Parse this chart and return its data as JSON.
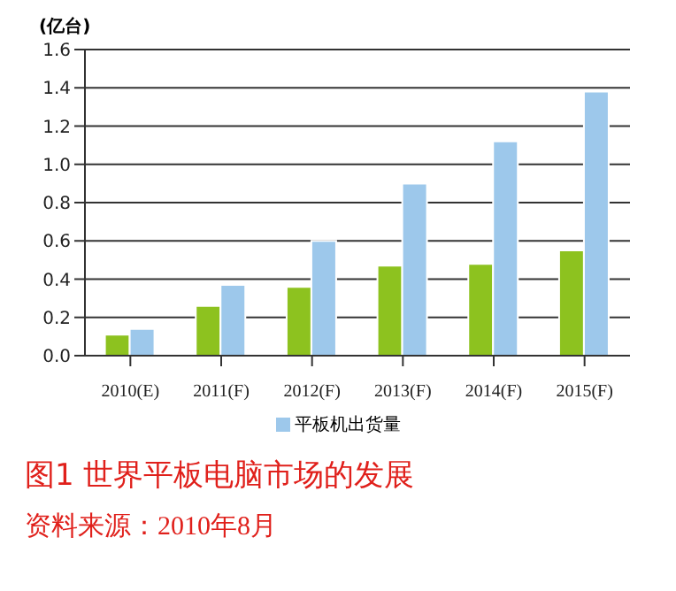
{
  "chart_data": {
    "type": "bar",
    "title": "图1  世界平板电脑市场的发展",
    "ylabel": "(亿台)",
    "annotations": [
      "资料来源：2010年8月"
    ],
    "categories": [
      "2010(E)",
      "2011(F)",
      "2012(F)",
      "2013(F)",
      "2014(F)",
      "2015(F)"
    ],
    "series": [
      {
        "color": "#8dc21f",
        "values": [
          0.11,
          0.26,
          0.36,
          0.47,
          0.48,
          0.55
        ]
      },
      {
        "name": "平板机出货量",
        "color": "#9dc8eb",
        "values": [
          0.14,
          0.37,
          0.6,
          0.9,
          1.12,
          1.38
        ]
      }
    ],
    "ylim": [
      0,
      1.6
    ],
    "yticks": [
      {
        "value": 0,
        "label": "0.0"
      },
      0.2,
      0.4,
      0.6,
      0.8,
      {
        "value": 1,
        "label": "1.0"
      },
      1.2,
      1.4,
      1.6
    ],
    "grid": "y",
    "legend": "bottom"
  }
}
